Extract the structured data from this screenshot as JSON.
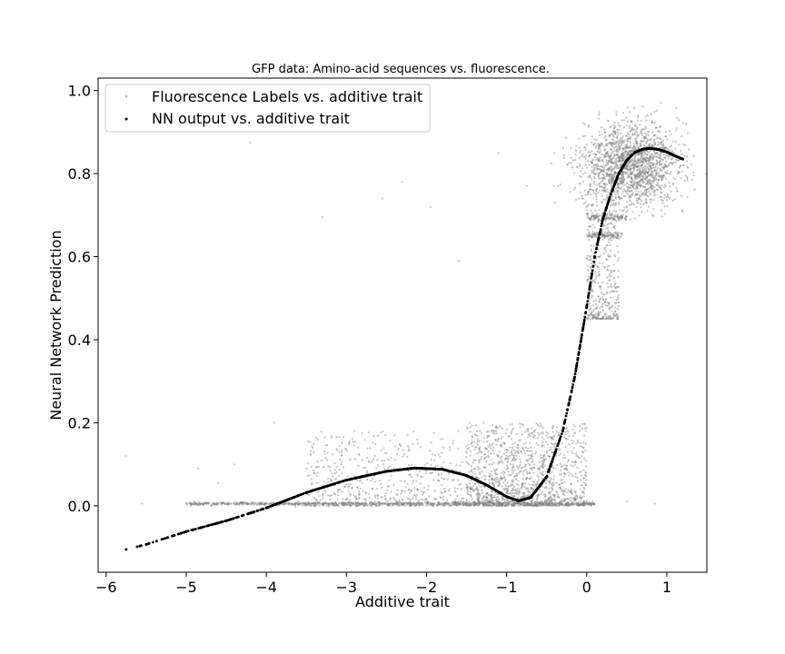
{
  "chart_data": {
    "type": "scatter",
    "title": "GFP data: Amino-acid sequences vs. fluorescence.",
    "xlabel": "Additive trait",
    "ylabel": "Neural Network Prediction",
    "xlim": [
      -6.1,
      1.5
    ],
    "ylim": [
      -0.16,
      1.03
    ],
    "xticks": [
      -6,
      -5,
      -4,
      -3,
      -2,
      -1,
      0,
      1
    ],
    "yticks": [
      0.0,
      0.2,
      0.4,
      0.6,
      0.8,
      1.0
    ],
    "xtick_labels": [
      "−6",
      "−5",
      "−4",
      "−3",
      "−2",
      "−1",
      "0",
      "1"
    ],
    "ytick_labels": [
      "0.0",
      "0.2",
      "0.4",
      "0.6",
      "0.8",
      "1.0"
    ],
    "grid": false,
    "legend_position": "top-left",
    "series": [
      {
        "name": "Fluorescence Labels vs. additive trait",
        "color": "#808080",
        "marker": "dot",
        "clusters": [
          {
            "x_range": [
              -5.0,
              0.1
            ],
            "y": 0.005,
            "spread": 0.002,
            "count": 900
          },
          {
            "x_range": [
              -3.5,
              -0.4
            ],
            "y_range": [
              0.0,
              0.18
            ],
            "count": 900
          },
          {
            "x_range": [
              -1.5,
              0.0
            ],
            "y_range": [
              0.0,
              0.2
            ],
            "count": 1100
          },
          {
            "x_center": 0.55,
            "x_spread": 0.3,
            "y_center": 0.82,
            "y_spread": 0.05,
            "count": 1800
          },
          {
            "x_range": [
              0.0,
              0.4
            ],
            "y_range": [
              0.45,
              0.8
            ],
            "count": 400
          },
          {
            "x_range": [
              0.0,
              0.5
            ],
            "y": 0.695,
            "spread": 0.004,
            "count": 120
          },
          {
            "x_range": [
              0.0,
              0.45
            ],
            "y": 0.652,
            "spread": 0.004,
            "count": 120
          }
        ],
        "outliers": [
          {
            "x": -5.75,
            "y": 0.12
          },
          {
            "x": -5.55,
            "y": 0.005
          },
          {
            "x": -4.85,
            "y": 0.09
          },
          {
            "x": -4.4,
            "y": 0.1
          },
          {
            "x": -4.2,
            "y": 0.875
          },
          {
            "x": -3.3,
            "y": 0.695
          },
          {
            "x": -2.55,
            "y": 0.74
          },
          {
            "x": -2.3,
            "y": 0.78
          },
          {
            "x": -1.95,
            "y": 0.72
          },
          {
            "x": -1.7,
            "y": 0.025
          },
          {
            "x": -1.1,
            "y": 0.85
          },
          {
            "x": -0.75,
            "y": 0.77
          },
          {
            "x": -0.4,
            "y": 0.73
          },
          {
            "x": -1.6,
            "y": 0.59
          },
          {
            "x": -3.9,
            "y": 0.2
          },
          {
            "x": -4.6,
            "y": 0.055
          },
          {
            "x": 0.85,
            "y": 0.005
          },
          {
            "x": 0.5,
            "y": 0.01
          }
        ]
      },
      {
        "name": "NN output vs. additive trait",
        "color": "#000000",
        "marker": "dot",
        "curve_points": [
          [
            -5.75,
            -0.105
          ],
          [
            -5.5,
            -0.093
          ],
          [
            -5.0,
            -0.062
          ],
          [
            -4.5,
            -0.036
          ],
          [
            -4.0,
            -0.005
          ],
          [
            -3.5,
            0.032
          ],
          [
            -3.0,
            0.062
          ],
          [
            -2.5,
            0.083
          ],
          [
            -2.15,
            0.091
          ],
          [
            -1.8,
            0.088
          ],
          [
            -1.5,
            0.073
          ],
          [
            -1.25,
            0.05
          ],
          [
            -1.0,
            0.022
          ],
          [
            -0.85,
            0.012
          ],
          [
            -0.7,
            0.02
          ],
          [
            -0.5,
            0.07
          ],
          [
            -0.3,
            0.18
          ],
          [
            -0.15,
            0.31
          ],
          [
            0.0,
            0.48
          ],
          [
            0.1,
            0.6
          ],
          [
            0.2,
            0.69
          ],
          [
            0.3,
            0.75
          ],
          [
            0.4,
            0.8
          ],
          [
            0.5,
            0.832
          ],
          [
            0.6,
            0.851
          ],
          [
            0.7,
            0.859
          ],
          [
            0.8,
            0.861
          ],
          [
            0.9,
            0.858
          ],
          [
            1.0,
            0.852
          ],
          [
            1.1,
            0.843
          ],
          [
            1.2,
            0.835
          ]
        ]
      }
    ]
  }
}
